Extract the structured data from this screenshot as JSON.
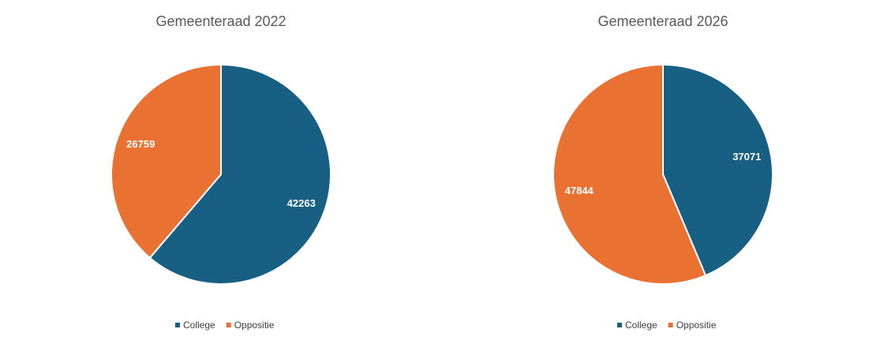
{
  "chart_data": [
    {
      "type": "pie",
      "title": "Gemeenteraad 2022",
      "categories": [
        "College",
        "Oppositie"
      ],
      "values": [
        42263,
        26759
      ],
      "colors": [
        "#176083",
        "#e97132"
      ],
      "legend": "bottom"
    },
    {
      "type": "pie",
      "title": "Gemeenteraad 2026",
      "categories": [
        "College",
        "Oppositie"
      ],
      "values": [
        37071,
        47844
      ],
      "colors": [
        "#176083",
        "#e97132"
      ],
      "legend": "bottom"
    }
  ]
}
